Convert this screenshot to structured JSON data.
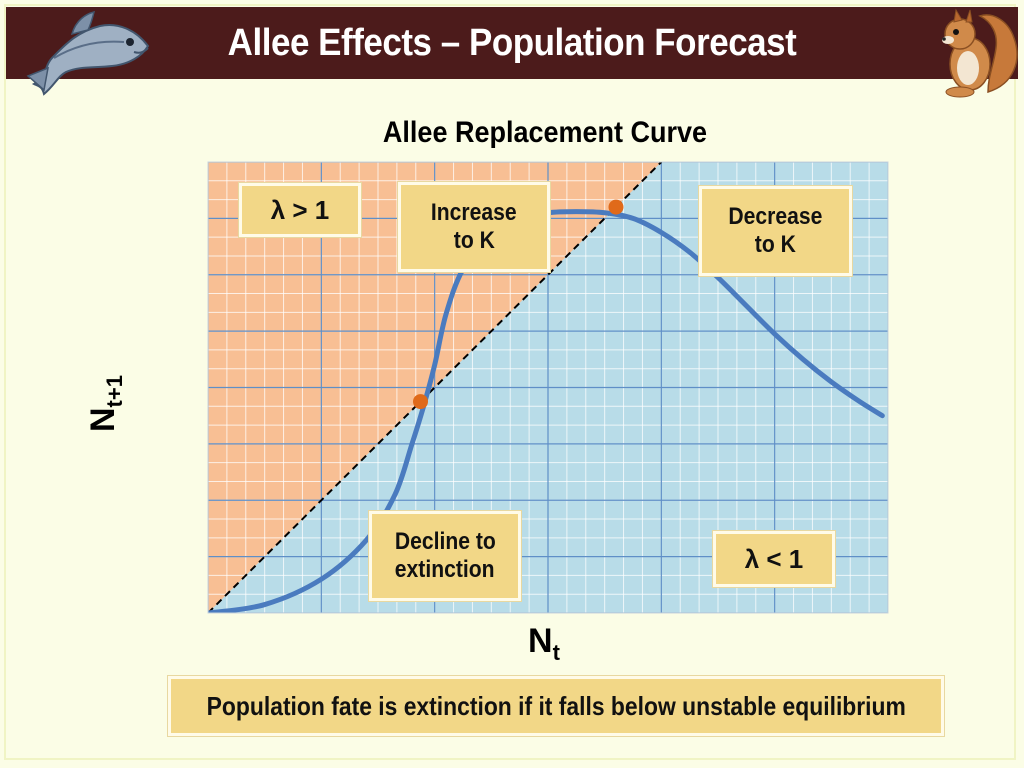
{
  "header": {
    "title": "Allee Effects – Population Forecast",
    "color": "#4c1b1b"
  },
  "icons": {
    "left": "fish-icon",
    "right": "squirrel-icon"
  },
  "chart": {
    "title": "Allee Replacement Curve",
    "ylabel_main": "N",
    "ylabel_sub": "t+1",
    "xlabel_main": "N",
    "xlabel_sub": "t",
    "colors": {
      "above_region": "#f8bf94",
      "below_region": "#b8dce8",
      "grid_minor": "#ffffff",
      "grid_major": "#5f8fc7",
      "curve": "#4a7bbf",
      "equilibrium_point": "#e06a1a"
    },
    "callouts": {
      "lambda_gt": "λ > 1",
      "increase_line1": "Increase",
      "increase_line2": "to K",
      "decrease_line1": "Decrease",
      "decrease_line2": "to K",
      "decline_line1": "Decline to",
      "decline_line2": "extinction",
      "lambda_lt": "λ < 1"
    }
  },
  "chart_data": {
    "type": "line",
    "title": "Allee Replacement Curve",
    "xlabel": "Nt",
    "ylabel": "Nt+1",
    "xlim": [
      0,
      120
    ],
    "ylim": [
      0,
      80
    ],
    "grid": true,
    "series": [
      {
        "x": [
          0,
          10,
          20,
          28,
          33,
          36,
          38,
          40,
          42,
          45,
          50,
          55,
          60,
          65,
          70,
          75,
          80,
          85,
          90,
          95,
          100,
          105,
          110,
          115,
          119
        ],
        "y": [
          0,
          1.5,
          6,
          13,
          21,
          30,
          36.5,
          44,
          53,
          61,
          67.5,
          70,
          71,
          71.2,
          71,
          70,
          67.5,
          64,
          59.5,
          54.5,
          49.5,
          45,
          41,
          37.5,
          35
        ]
      },
      {
        "x": [
          0,
          80
        ],
        "y": [
          0,
          80
        ]
      }
    ],
    "points": [
      {
        "x": 37.5,
        "y": 37.5
      },
      {
        "x": 72,
        "y": 72
      }
    ]
  },
  "footer": {
    "text": "Population fate is extinction if it falls below unstable equilibrium"
  }
}
